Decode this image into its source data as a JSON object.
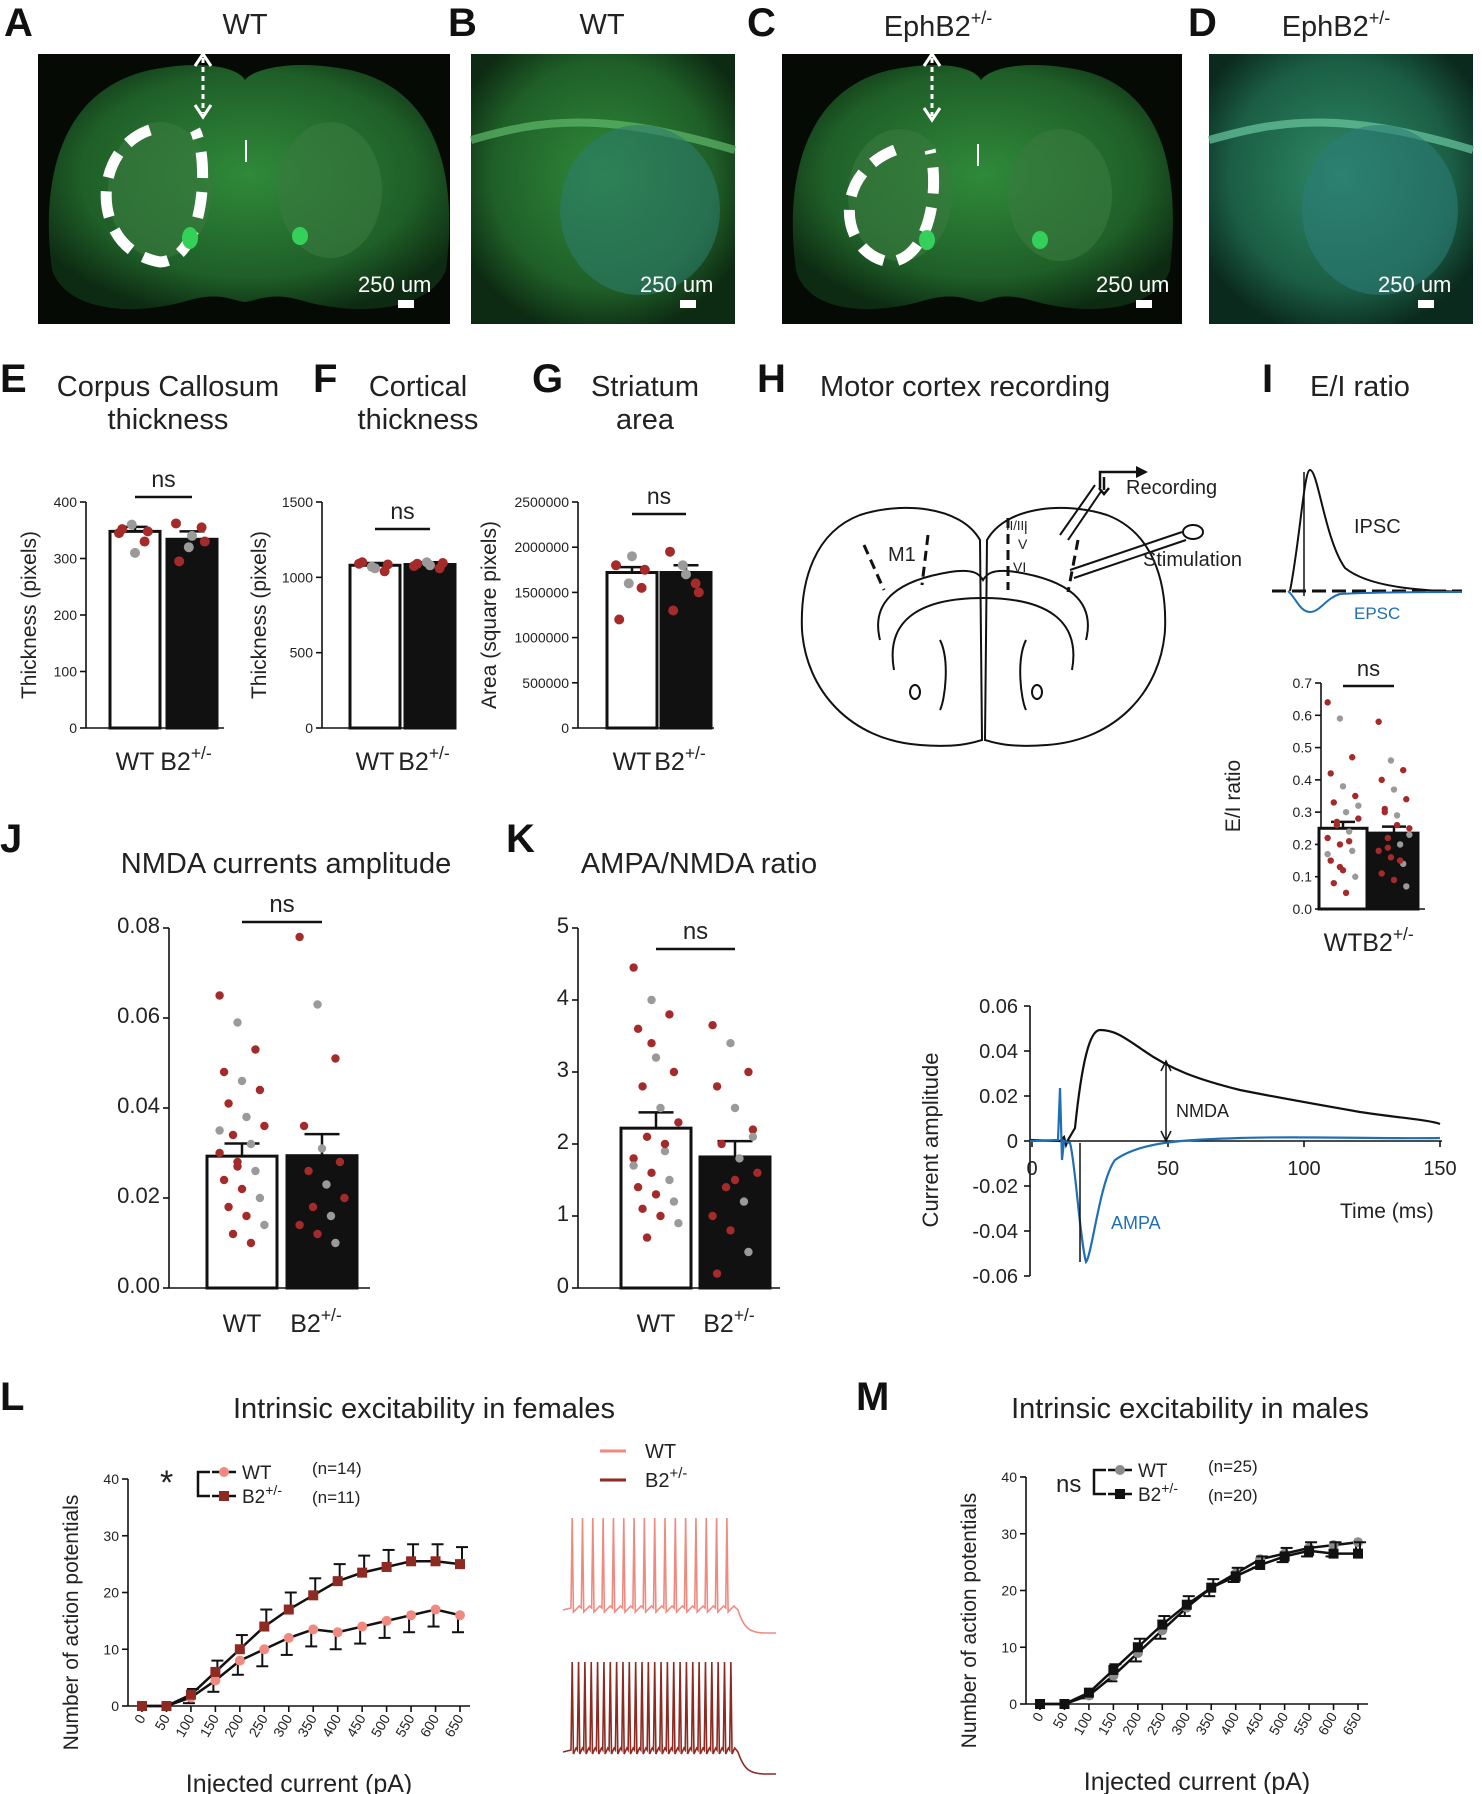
{
  "micrographs": {
    "A": {
      "letter": "A",
      "title": "WT",
      "scale": "250 um"
    },
    "B": {
      "letter": "B",
      "title": "WT",
      "scale": "250 um"
    },
    "C": {
      "letter": "C",
      "title_base": "EphB2",
      "title_sup": "+/-",
      "scale": "250 um"
    },
    "D": {
      "letter": "D",
      "title_base": "EphB2",
      "title_sup": "+/-",
      "scale": "250 um"
    }
  },
  "panel_letters": {
    "E": "E",
    "F": "F",
    "G": "G",
    "H": "H",
    "I": "I",
    "J": "J",
    "K": "K",
    "L": "L",
    "M": "M"
  },
  "titles": {
    "E1": "Corpus Callosum",
    "E2": "thickness",
    "F1": "Cortical",
    "F2": "thickness",
    "G1": "Striatum",
    "G2": "area",
    "H": "Motor cortex recording",
    "I": "E/I ratio",
    "J": "NMDA currents amplitude",
    "K": "AMPA/NMDA ratio",
    "L": "Intrinsic excitability in females",
    "M": "Intrinsic excitability in males"
  },
  "common": {
    "wt": "WT",
    "b2": "B2",
    "sup": "+/-",
    "ns": "ns",
    "star": "*"
  },
  "colors": {
    "wt_female": "#f08a80",
    "b2_female": "#8e2a22",
    "red_dot": "#a52a2a",
    "grey_dot": "#9a9a9a",
    "blue": "#1f6fb5",
    "wt_male": "#8a8a8a",
    "b2_male": "#111111"
  },
  "schematic": {
    "recording": "Recording",
    "stimulation": "Stimulation",
    "m1": "M1",
    "layer1": "I",
    "layer2": "II/III",
    "layer5": "V",
    "layer6": "VI"
  },
  "ei_trace": {
    "ipsc": "IPSC",
    "epsc": "EPSC"
  },
  "current_trace": {
    "ylabel": "Current amplitude",
    "xlabel": "Time (ms)",
    "nmda": "NMDA",
    "ampa": "AMPA",
    "yticks": [
      "0.06",
      "0.04",
      "0.02",
      "0",
      "-0.02",
      "-0.04",
      "-0.06"
    ],
    "xticks": [
      "0",
      "50",
      "100",
      "150"
    ]
  },
  "excitability_labels": {
    "ylabel": "Number of action potentials",
    "xlabel": "Injected current (pA)",
    "female_n_wt": "(n=14)",
    "female_n_b2": "(n=11)",
    "male_n_wt": "(n=25)",
    "male_n_b2": "(n=20)"
  },
  "chart_data": [
    {
      "id": "E",
      "type": "bar",
      "title": "Corpus Callosum thickness",
      "ylabel": "Thickness (pixels)",
      "categories": [
        "WT",
        "B2+/-"
      ],
      "values": [
        348,
        334
      ],
      "errors": [
        8,
        14
      ],
      "ylim": [
        0,
        400
      ],
      "yticks": [
        "0",
        "100",
        "200",
        "300",
        "400"
      ],
      "significance": "ns",
      "points": [
        [
          345,
          360,
          330,
          352,
          310,
          348
        ],
        [
          362,
          320,
          355,
          295,
          340,
          330
        ]
      ]
    },
    {
      "id": "F",
      "type": "bar",
      "title": "Cortical thickness",
      "ylabel": "Thickness (pixels)",
      "categories": [
        "WT",
        "B2+/-"
      ],
      "values": [
        1080,
        1085
      ],
      "errors": [
        15,
        15
      ],
      "ylim": [
        0,
        1500
      ],
      "yticks": [
        "0",
        "500",
        "1000",
        "1500"
      ],
      "significance": "ns",
      "points": [
        [
          1090,
          1070,
          1040,
          1100,
          1060,
          1085
        ],
        [
          1075,
          1100,
          1060,
          1090,
          1080,
          1095
        ]
      ]
    },
    {
      "id": "G",
      "type": "bar",
      "title": "Striatum area",
      "ylabel": "Area (square pixels)",
      "categories": [
        "WT",
        "B2+/-"
      ],
      "values": [
        1720000,
        1720000
      ],
      "errors": [
        60000,
        80000
      ],
      "ylim": [
        0,
        2500000
      ],
      "yticks": [
        "0",
        "500000",
        "1000000",
        "1500000",
        "2000000",
        "2500000"
      ],
      "significance": "ns",
      "points": [
        [
          1800000,
          1600000,
          1550000,
          1200000,
          1900000,
          1750000
        ],
        [
          1950000,
          1800000,
          1600000,
          1300000,
          1700000,
          1500000
        ]
      ]
    },
    {
      "id": "I",
      "type": "bar",
      "title": "E/I ratio",
      "ylabel": "E/I ratio",
      "categories": [
        "WT",
        "B2+/-"
      ],
      "values": [
        0.25,
        0.235
      ],
      "errors": [
        0.02,
        0.02
      ],
      "ylim": [
        0,
        0.7
      ],
      "yticks": [
        "0.0",
        "0.1",
        "0.2",
        "0.3",
        "0.4",
        "0.5",
        "0.6",
        "0.7"
      ],
      "significance": "ns",
      "points": [
        [
          0.64,
          0.59,
          0.47,
          0.42,
          0.38,
          0.35,
          0.33,
          0.3,
          0.28,
          0.26,
          0.24,
          0.22,
          0.2,
          0.18,
          0.15,
          0.12,
          0.1,
          0.08,
          0.05,
          0.32,
          0.27,
          0.21,
          0.17,
          0.13
        ],
        [
          0.58,
          0.46,
          0.43,
          0.4,
          0.37,
          0.34,
          0.31,
          0.29,
          0.25,
          0.22,
          0.2,
          0.18,
          0.16,
          0.14,
          0.11,
          0.09,
          0.07,
          0.3,
          0.26,
          0.23,
          0.19,
          0.15
        ]
      ]
    },
    {
      "id": "J",
      "type": "bar",
      "title": "NMDA currents amplitude",
      "categories": [
        "WT",
        "B2+/-"
      ],
      "values": [
        0.0293,
        0.0294
      ],
      "errors": [
        0.0028,
        0.0048
      ],
      "ylim": [
        0,
        0.08
      ],
      "yticks": [
        "0.00",
        "0.02",
        "0.04",
        "0.06",
        "0.08"
      ],
      "significance": "ns",
      "points": [
        [
          0.065,
          0.059,
          0.053,
          0.048,
          0.046,
          0.044,
          0.041,
          0.038,
          0.036,
          0.034,
          0.032,
          0.03,
          0.028,
          0.026,
          0.024,
          0.022,
          0.02,
          0.018,
          0.016,
          0.014,
          0.012,
          0.01,
          0.035,
          0.027
        ],
        [
          0.078,
          0.063,
          0.051,
          0.036,
          0.031,
          0.028,
          0.026,
          0.023,
          0.02,
          0.018,
          0.016,
          0.014,
          0.012,
          0.01
        ]
      ]
    },
    {
      "id": "K",
      "type": "bar",
      "title": "AMPA/NMDA ratio",
      "categories": [
        "WT",
        "B2+/-"
      ],
      "values": [
        2.22,
        1.82
      ],
      "errors": [
        0.22,
        0.22
      ],
      "ylim": [
        0,
        5
      ],
      "yticks": [
        "0",
        "1",
        "2",
        "3",
        "4",
        "5"
      ],
      "significance": "ns",
      "points": [
        [
          4.45,
          4.0,
          3.8,
          3.6,
          3.2,
          3.0,
          2.8,
          2.5,
          2.3,
          2.1,
          1.9,
          1.8,
          1.6,
          1.5,
          1.4,
          1.3,
          1.2,
          1.1,
          1.0,
          0.9,
          0.7,
          2.0,
          1.7,
          3.4
        ],
        [
          3.65,
          3.4,
          3.0,
          2.8,
          2.5,
          2.2,
          2.0,
          1.8,
          1.6,
          1.4,
          1.2,
          1.0,
          0.8,
          0.5,
          0.2,
          1.5,
          2.1
        ]
      ]
    },
    {
      "id": "L",
      "type": "line",
      "title": "Intrinsic excitability in females",
      "xlabel": "Injected current (pA)",
      "ylabel": "Number of action potentials",
      "ylim": [
        0,
        40
      ],
      "yticks": [
        "0",
        "10",
        "20",
        "30",
        "40"
      ],
      "x": [
        0,
        50,
        100,
        150,
        200,
        250,
        300,
        350,
        400,
        450,
        500,
        550,
        600,
        650
      ],
      "x_tick_labels": [
        "0",
        "50",
        "100",
        "150",
        "200",
        "250",
        "300",
        "350",
        "400",
        "450",
        "500",
        "550",
        "600",
        "650"
      ],
      "significance": "*",
      "series": [
        {
          "name": "WT",
          "n": "(n=14)",
          "values": [
            0,
            0,
            1.5,
            4.5,
            8,
            10,
            12,
            13.5,
            13,
            14,
            15,
            16,
            17,
            16
          ],
          "errors": [
            0,
            0,
            1,
            2,
            2.5,
            3,
            3,
            3,
            3,
            3,
            3,
            3,
            3,
            3
          ]
        },
        {
          "name": "B2+/-",
          "n": "(n=11)",
          "values": [
            0,
            0,
            2,
            6,
            10,
            14,
            17,
            19.5,
            22,
            23.5,
            24.5,
            25.5,
            25.5,
            25
          ],
          "errors": [
            0,
            0,
            1,
            2,
            2.5,
            3,
            3,
            3,
            3,
            3,
            3,
            3,
            3,
            3
          ]
        }
      ]
    },
    {
      "id": "M",
      "type": "line",
      "title": "Intrinsic excitability in males",
      "xlabel": "Injected current (pA)",
      "ylabel": "Number of action potentials",
      "ylim": [
        0,
        40
      ],
      "yticks": [
        "0",
        "10",
        "20",
        "30",
        "40"
      ],
      "x": [
        0,
        50,
        100,
        150,
        200,
        250,
        300,
        350,
        400,
        450,
        500,
        550,
        600,
        650
      ],
      "x_tick_labels": [
        "0",
        "50",
        "100",
        "150",
        "200",
        "250",
        "300",
        "350",
        "400",
        "450",
        "500",
        "550",
        "600",
        "650"
      ],
      "significance": "ns",
      "series": [
        {
          "name": "WT",
          "n": "(n=25)",
          "values": [
            0,
            0,
            1.5,
            5,
            9,
            13,
            17,
            20.5,
            23,
            25.5,
            26.5,
            27.5,
            28,
            28.5
          ],
          "errors": [
            0,
            0,
            0.5,
            1,
            1.5,
            1.5,
            1.5,
            1.5,
            1.5,
            1.5,
            1.5,
            1.5,
            2,
            2
          ]
        },
        {
          "name": "B2+/-",
          "n": "(n=20)",
          "values": [
            0,
            0,
            2,
            6,
            10,
            14,
            17.5,
            20.5,
            22.5,
            24.5,
            26,
            27,
            26.5,
            26.5
          ],
          "errors": [
            0,
            0,
            0.5,
            1,
            1.5,
            1.5,
            1.5,
            1.5,
            1.5,
            1.5,
            1.5,
            1.5,
            2,
            2
          ]
        }
      ]
    }
  ]
}
